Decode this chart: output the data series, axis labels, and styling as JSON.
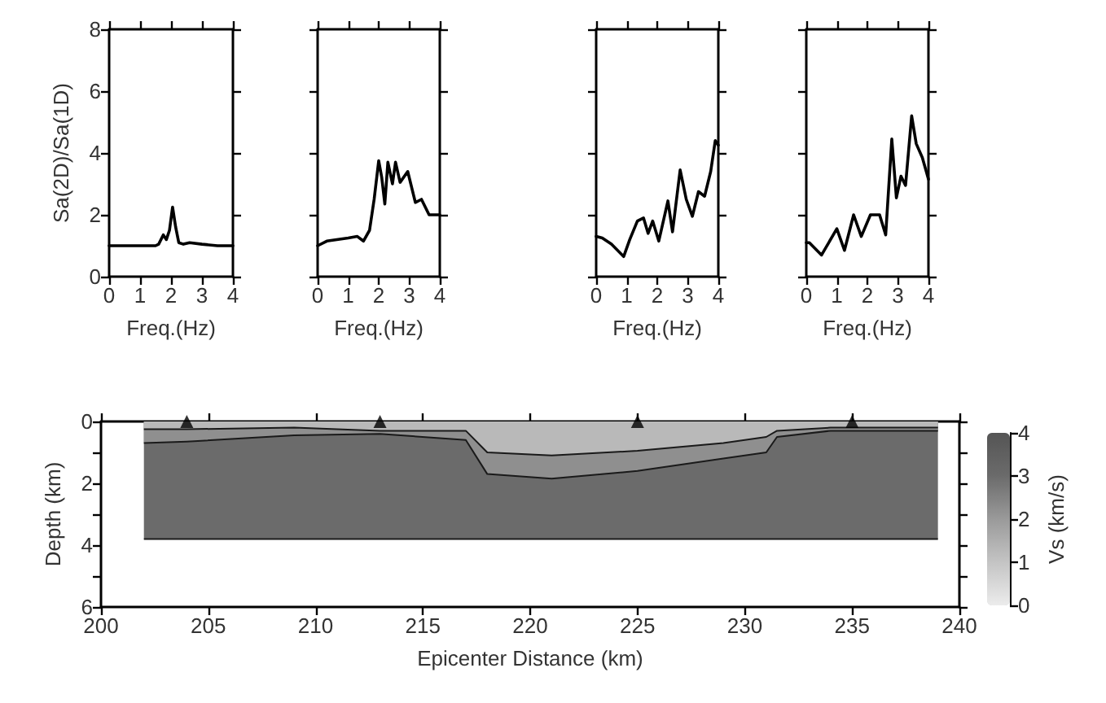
{
  "chart_data": [
    {
      "type": "line",
      "color": "#000000",
      "x": [
        0,
        1.5,
        1.6,
        1.75,
        1.85,
        1.95,
        2.05,
        2.15,
        2.25,
        2.4,
        2.6,
        3,
        3.5,
        4
      ],
      "values": [
        1,
        1,
        1.05,
        1.35,
        1.2,
        1.5,
        2.25,
        1.6,
        1.1,
        1.05,
        1.1,
        1.05,
        1,
        1
      ],
      "xlim": [
        0,
        4
      ],
      "xticks": [
        0,
        1,
        2,
        3,
        4
      ],
      "ylim": [
        0,
        8
      ],
      "yticks": [
        0,
        2,
        4,
        6,
        8
      ],
      "xlabel": "Freq.(Hz)",
      "ylabel": "Sa(2D)/Sa(1D)"
    },
    {
      "type": "line",
      "color": "#000000",
      "x": [
        0,
        0.3,
        1,
        1.3,
        1.5,
        1.7,
        1.85,
        2,
        2.1,
        2.2,
        2.3,
        2.45,
        2.55,
        2.7,
        2.95,
        3.2,
        3.4,
        3.65,
        4
      ],
      "values": [
        1,
        1.15,
        1.25,
        1.3,
        1.15,
        1.5,
        2.5,
        3.75,
        3.2,
        2.35,
        3.7,
        3,
        3.7,
        3.05,
        3.4,
        2.4,
        2.5,
        2,
        2
      ],
      "xlim": [
        0,
        4
      ],
      "xticks": [
        0,
        1,
        2,
        3,
        4
      ],
      "ylim": [
        0,
        8
      ],
      "yticks": [
        0,
        2,
        4,
        6,
        8
      ],
      "xlabel": "Freq.(Hz)",
      "tick_labels": "x"
    },
    {
      "type": "line",
      "color": "#000000",
      "x": [
        0,
        0.2,
        0.5,
        0.9,
        1.1,
        1.35,
        1.55,
        1.7,
        1.85,
        2.05,
        2.35,
        2.5,
        2.75,
        2.95,
        3.15,
        3.35,
        3.55,
        3.75,
        3.9,
        4
      ],
      "values": [
        1.3,
        1.25,
        1.05,
        0.65,
        1.2,
        1.8,
        1.9,
        1.4,
        1.8,
        1.15,
        2.45,
        1.45,
        3.45,
        2.5,
        1.95,
        2.75,
        2.6,
        3.4,
        4.4,
        4.25
      ],
      "xlim": [
        0,
        4
      ],
      "xticks": [
        0,
        1,
        2,
        3,
        4
      ],
      "ylim": [
        0,
        8
      ],
      "yticks": [
        0,
        2,
        4,
        6,
        8
      ],
      "xlabel": "Freq.(Hz)",
      "tick_labels": "x"
    },
    {
      "type": "line",
      "color": "#000000",
      "x": [
        0,
        0.1,
        0.5,
        1,
        1.25,
        1.55,
        1.8,
        2.1,
        2.4,
        2.6,
        2.8,
        2.95,
        3.1,
        3.25,
        3.45,
        3.6,
        3.8,
        4
      ],
      "values": [
        1.1,
        1.1,
        0.7,
        1.55,
        0.85,
        2,
        1.3,
        2,
        2,
        1.35,
        4.45,
        2.55,
        3.25,
        2.95,
        5.2,
        4.3,
        3.85,
        3.15
      ],
      "xlim": [
        0,
        4
      ],
      "xticks": [
        0,
        1,
        2,
        3,
        4
      ],
      "ylim": [
        0,
        8
      ],
      "yticks": [
        0,
        2,
        4,
        6,
        8
      ],
      "xlabel": "Freq.(Hz)",
      "tick_labels": "x"
    },
    {
      "type": "area",
      "stacked": true,
      "x": [
        202,
        204,
        209,
        213,
        217,
        218,
        221,
        225,
        229,
        231,
        231.5,
        234,
        239
      ],
      "series": [
        {
          "color": "#b9b9b9",
          "values": [
            0.25,
            0.25,
            0.2,
            0.3,
            0.3,
            1,
            1.1,
            0.95,
            0.7,
            0.5,
            0.3,
            0.2,
            0.2
          ]
        },
        {
          "color": "#8f8f8f",
          "values": [
            0.45,
            0.4,
            0.25,
            0.1,
            0.3,
            0.7,
            0.75,
            0.65,
            0.5,
            0.5,
            0.2,
            0.1,
            0.1
          ]
        },
        {
          "color": "#6b6b6b",
          "values": [
            3.1,
            3.15,
            3.35,
            3.4,
            3.2,
            2.1,
            1.95,
            2.2,
            2.6,
            2.8,
            3.3,
            3.5,
            3.5
          ]
        },
        {
          "type": "scatter",
          "marker": "triangle",
          "color": "#000000",
          "x": [
            204,
            213,
            225,
            235
          ],
          "values": [
            0,
            0,
            0,
            0
          ]
        }
      ],
      "xlim": [
        200,
        240
      ],
      "xticks": [
        200,
        205,
        210,
        215,
        220,
        225,
        230,
        235,
        240
      ],
      "ylim": [
        6,
        0
      ],
      "yticks": [
        0,
        {
          "value": 1,
          "label": null
        },
        2,
        {
          "value": 3,
          "label": null
        },
        4,
        {
          "value": 5,
          "label": null
        },
        6
      ],
      "xlabel": "Epicenter Distance (km)",
      "ylabel": "Depth (km)",
      "clabel": "Vs (km/s)",
      "clim": [
        0,
        4
      ],
      "cticks": [
        0,
        1,
        2,
        3,
        4
      ]
    }
  ]
}
